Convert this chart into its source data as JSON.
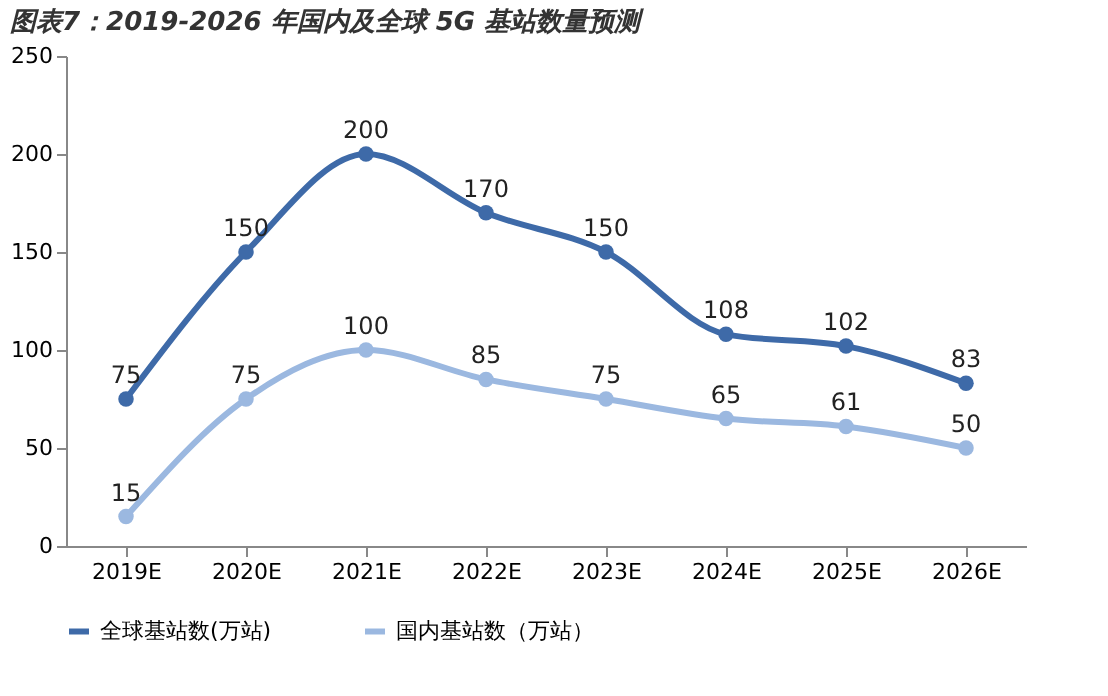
{
  "chart_data": {
    "type": "line",
    "title": "图表7：2019-2026 年国内及全球 5G 基站数量预测",
    "categories": [
      "2019E",
      "2020E",
      "2021E",
      "2022E",
      "2023E",
      "2024E",
      "2025E",
      "2026E"
    ],
    "series": [
      {
        "name": "全球基站数(万站)",
        "color": "#3e6aa8",
        "values": [
          75,
          150,
          200,
          170,
          150,
          108,
          102,
          83
        ]
      },
      {
        "name": "国内基站数（万站）",
        "color": "#9bb8e0",
        "values": [
          15,
          75,
          100,
          85,
          75,
          65,
          61,
          50
        ]
      }
    ],
    "ylim": [
      0,
      250
    ],
    "yticks": [
      0,
      50,
      100,
      150,
      200,
      250
    ],
    "grid": false,
    "legend": "bottom",
    "marker": "circle",
    "line_style": "solid",
    "data_labels": true
  }
}
